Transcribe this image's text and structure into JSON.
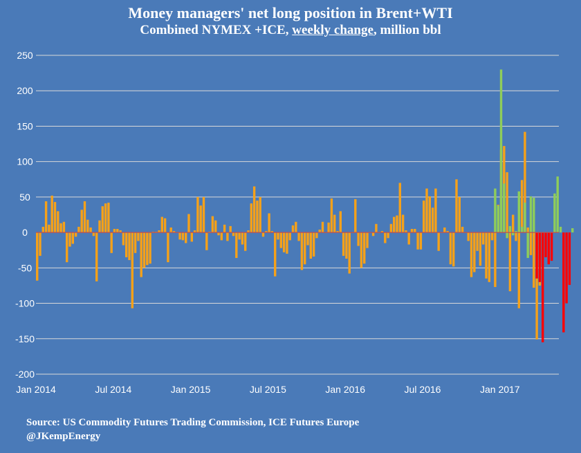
{
  "title": "Money managers' net long position in  Brent+WTI",
  "subtitle": {
    "prefix": "Combined NYMEX +ICE, ",
    "underlined": "weekly change",
    "suffix": ", million bbl"
  },
  "source_lines": [
    "Source: US Commodity Futures Trading Commission, ICE Futures Europe",
    "@JKempEnergy"
  ],
  "colors": {
    "background": "#4a7ab8",
    "gridline": "#d9d9d9",
    "series_main": "#f5a11a",
    "series_green": "#8fcd5a",
    "series_red": "#ff0000",
    "zero_line": "#c0504d"
  },
  "chart_data": {
    "type": "bar",
    "title": "Money managers' net long position in  Brent+WTI",
    "subtitle": "Combined NYMEX +ICE, weekly change, million bbl",
    "ylim": [
      -200,
      250
    ],
    "yticks": [
      -200,
      -150,
      -100,
      -50,
      0,
      50,
      100,
      150,
      200,
      250
    ],
    "grid": true,
    "xtick_labels": [
      "Jan 2014",
      "Jul 2014",
      "Jan 2015",
      "Jul 2015",
      "Jan 2016",
      "Jul 2016",
      "Jan 2017"
    ],
    "xtick_week_index": [
      0,
      26,
      52,
      78,
      104,
      130,
      156
    ],
    "series": [
      {
        "color": "orange",
        "start_week": 0,
        "values": [
          -68,
          -33,
          8,
          44,
          11,
          52,
          43,
          30,
          13,
          15,
          -42,
          -20,
          -16,
          -6,
          8,
          32,
          44,
          18,
          7,
          -5,
          -69,
          17,
          37,
          41,
          42,
          -29,
          5,
          5,
          3,
          -18,
          -35,
          -39,
          -107,
          -29,
          -12,
          -63,
          -50,
          -46,
          -44,
          1,
          1,
          3,
          22,
          20,
          -42,
          7,
          2,
          0,
          -10,
          -11,
          -15,
          26,
          -13,
          3,
          50,
          38,
          50,
          -25,
          1,
          23,
          17,
          -4,
          -11,
          11,
          -12,
          9,
          -5,
          -36,
          -10,
          -17,
          -26,
          3,
          41,
          65,
          45,
          50,
          -6,
          2,
          27,
          2,
          -62,
          -10,
          -22,
          -28,
          -30,
          -11,
          10,
          15,
          -12,
          -53,
          -45,
          -18,
          -37,
          -34,
          -8,
          4,
          15,
          0,
          14,
          48,
          25,
          2,
          30,
          -33,
          -37,
          -58,
          0,
          47,
          -19,
          -50,
          -44,
          -22,
          0,
          -5,
          12,
          0,
          2,
          -15,
          -8,
          12,
          22,
          24,
          70,
          25,
          3,
          -17,
          5,
          5,
          -24,
          -24,
          45,
          62,
          51,
          35,
          62,
          -26,
          0,
          7,
          2,
          -45,
          -48,
          75,
          50,
          8,
          0,
          -12,
          -63,
          -56,
          -26,
          -47,
          -17,
          -65,
          -70,
          -11,
          -77,
          39,
          117,
          122,
          85,
          -83,
          25,
          -12,
          -107,
          74,
          142,
          7,
          -32,
          -78,
          -151,
          -75,
          -5
        ],
        "_note_values_are_weekly_changes_million_bbl": ""
      },
      {
        "color": "green",
        "start_week": 154,
        "values": [
          62,
          38,
          230,
          69,
          -8,
          9,
          -4,
          2,
          58,
          8,
          42,
          -36,
          51,
          49
        ]
      },
      {
        "color": "red",
        "start_week": 168,
        "values": [
          -65,
          -70,
          -155,
          -35,
          -45,
          -40
        ]
      },
      {
        "color": "green",
        "start_week": 174,
        "values": [
          55,
          79,
          8
        ]
      },
      {
        "color": "red",
        "start_week": 177,
        "values": [
          -141,
          -100,
          -74
        ]
      },
      {
        "color": "green",
        "start_week": 180,
        "values": [
          6
        ]
      }
    ]
  }
}
